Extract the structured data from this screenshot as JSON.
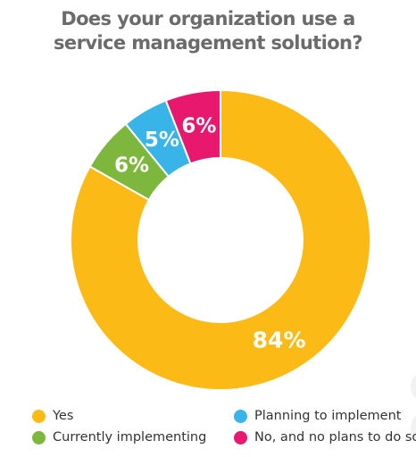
{
  "chart_data": {
    "type": "pie",
    "title_lines": [
      "Does your organization use a",
      "service management solution?"
    ],
    "categories": [
      "Yes",
      "Currently implementing",
      "Planning to implement",
      "No, and no plans to do so"
    ],
    "values": [
      84,
      6,
      5,
      6
    ],
    "data_labels": [
      "84%",
      "6%",
      "5%",
      "6%"
    ],
    "colors": [
      "#FBBA16",
      "#7DB73D",
      "#39B4E8",
      "#E8186F"
    ],
    "donut": true,
    "legend_position": "bottom"
  },
  "legend": {
    "items": [
      {
        "label": "Yes",
        "color": "#FBBA16"
      },
      {
        "label": "Planning to implement",
        "color": "#39B4E8"
      },
      {
        "label": "Currently implementing",
        "color": "#7DB73D"
      },
      {
        "label": "No, and no plans to do so",
        "color": "#E8186F"
      }
    ]
  }
}
